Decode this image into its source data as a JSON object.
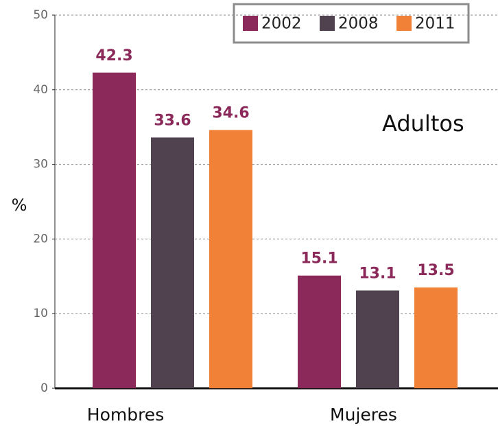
{
  "chart_data": {
    "type": "bar",
    "categories": [
      "Hombres",
      "Mujeres"
    ],
    "series": [
      {
        "name": "2002",
        "color": "#8b2a5a",
        "values": [
          42.3,
          15.1
        ]
      },
      {
        "name": "2008",
        "color": "#51424f",
        "values": [
          33.6,
          13.1
        ]
      },
      {
        "name": "2011",
        "color": "#f08136",
        "values": [
          34.6,
          13.5
        ]
      }
    ],
    "ylabel": "%",
    "annotation": "Adultos",
    "ylim": [
      0,
      50
    ],
    "yticks": [
      0,
      10,
      20,
      30,
      40,
      50
    ],
    "grid": true,
    "legend": "top-right"
  }
}
